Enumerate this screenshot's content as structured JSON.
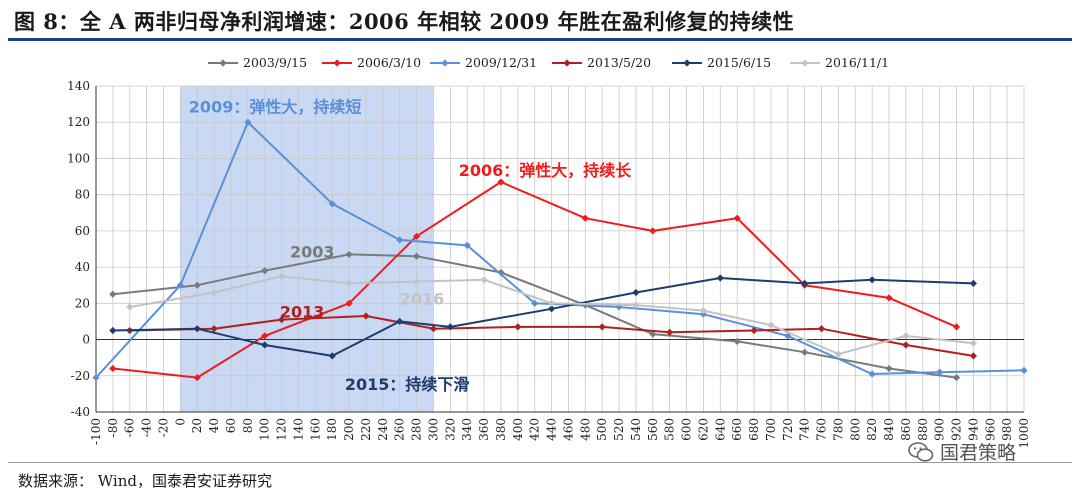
{
  "header": {
    "title": "图 8：全 A 两非归母净利润增速：2006 年相较 2009 年胜在盈利修复的持续性"
  },
  "footer": {
    "source": "数据来源：  Wind，国泰君安证券研究",
    "watermark": "国君策略"
  },
  "chart_data": {
    "type": "line",
    "title": "全 A 两非归母净利润增速",
    "xlabel": "",
    "ylabel": "",
    "xlim": [
      -100,
      1000
    ],
    "ylim": [
      -40,
      140
    ],
    "yticks": [
      -40,
      -20,
      0,
      20,
      40,
      60,
      80,
      100,
      120,
      140
    ],
    "xticks": [
      -100,
      -80,
      -60,
      -40,
      -20,
      0,
      20,
      40,
      60,
      80,
      100,
      120,
      140,
      160,
      180,
      200,
      220,
      240,
      260,
      280,
      300,
      320,
      340,
      360,
      380,
      400,
      420,
      440,
      460,
      480,
      500,
      520,
      540,
      560,
      580,
      600,
      620,
      640,
      660,
      680,
      700,
      720,
      740,
      760,
      780,
      800,
      820,
      840,
      860,
      880,
      900,
      920,
      940,
      960,
      980,
      1000
    ],
    "grid": true,
    "legend_position": "top",
    "highlight": {
      "x_from": 0,
      "x_to": 300,
      "color": "#c9d9f3"
    },
    "series": [
      {
        "name": "2003/9/15",
        "color": "#7a7a7a",
        "x": [
          -80,
          20,
          100,
          200,
          280,
          380,
          480,
          560,
          660,
          740,
          840,
          920
        ],
        "y": [
          25,
          30,
          38,
          47,
          46,
          37,
          19,
          3,
          -1,
          -7,
          -16,
          -21
        ]
      },
      {
        "name": "2006/3/10",
        "color": "#ee1c1c",
        "x": [
          -80,
          20,
          100,
          200,
          280,
          380,
          480,
          560,
          660,
          740,
          840,
          920
        ],
        "y": [
          -16,
          -21,
          2,
          20,
          57,
          87,
          67,
          60,
          67,
          30,
          23,
          7
        ]
      },
      {
        "name": "2009/12/31",
        "color": "#5b8fd6",
        "x": [
          -100,
          0,
          80,
          180,
          260,
          340,
          420,
          520,
          620,
          720,
          820,
          900,
          1000
        ],
        "y": [
          -21,
          30,
          120,
          75,
          55,
          52,
          20,
          18,
          14,
          2,
          -19,
          -18,
          -17
        ]
      },
      {
        "name": "2013/5/20",
        "color": "#b0201f",
        "x": [
          -60,
          40,
          120,
          220,
          300,
          400,
          500,
          580,
          680,
          760,
          860,
          940
        ],
        "y": [
          5,
          6,
          11,
          13,
          6,
          7,
          7,
          4,
          5,
          6,
          -3,
          -9
        ]
      },
      {
        "name": "2015/6/15",
        "color": "#1f3c6e",
        "x": [
          -80,
          20,
          100,
          180,
          260,
          320,
          440,
          540,
          640,
          740,
          820,
          940
        ],
        "y": [
          5,
          6,
          -3,
          -9,
          10,
          7,
          17,
          26,
          34,
          31,
          33,
          31
        ]
      },
      {
        "name": "2016/11/1",
        "color": "#c3c3c3",
        "x": [
          -60,
          40,
          120,
          200,
          280,
          360,
          440,
          540,
          620,
          700,
          780,
          860,
          940
        ],
        "y": [
          18,
          26,
          35,
          31,
          32,
          33,
          20,
          19,
          16,
          8,
          -8,
          2,
          -2
        ]
      }
    ],
    "annotations": [
      {
        "text": "2009：弹性大，持续短",
        "x": 10,
        "y": 128,
        "color": "#5b8fd6"
      },
      {
        "text": "2006：弹性大，持续长",
        "x": 330,
        "y": 93,
        "color": "#ee1c1c"
      },
      {
        "text": "2003",
        "x": 130,
        "y": 48,
        "color": "#7a7a7a"
      },
      {
        "text": "2016",
        "x": 260,
        "y": 22,
        "color": "#c3c3c3"
      },
      {
        "text": "2013",
        "x": 118,
        "y": 15,
        "color": "#b0201f"
      },
      {
        "text": "2015：持续下滑",
        "x": 195,
        "y": -25,
        "color": "#1f3c6e"
      }
    ]
  }
}
